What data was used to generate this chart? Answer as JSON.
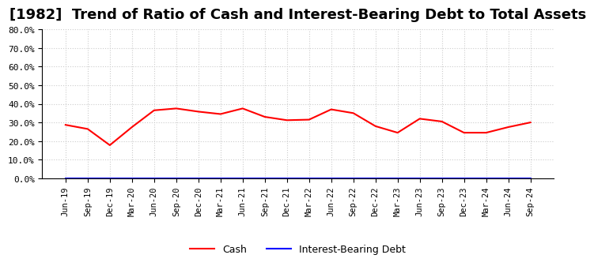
{
  "title": "[1982]  Trend of Ratio of Cash and Interest-Bearing Debt to Total Assets",
  "x_labels": [
    "Jun-19",
    "Sep-19",
    "Dec-19",
    "Mar-20",
    "Jun-20",
    "Sep-20",
    "Dec-20",
    "Mar-21",
    "Jun-21",
    "Sep-21",
    "Dec-21",
    "Mar-22",
    "Jun-22",
    "Sep-22",
    "Dec-22",
    "Mar-23",
    "Jun-23",
    "Sep-23",
    "Dec-23",
    "Mar-24",
    "Jun-24",
    "Sep-24"
  ],
  "cash_values": [
    0.287,
    0.265,
    0.178,
    0.275,
    0.365,
    0.375,
    0.358,
    0.345,
    0.375,
    0.33,
    0.312,
    0.315,
    0.37,
    0.35,
    0.28,
    0.245,
    0.32,
    0.305,
    0.245,
    0.245,
    0.275,
    0.3
  ],
  "debt_values": [
    0.0,
    0.0,
    0.0,
    0.0,
    0.0,
    0.0,
    0.0,
    0.0,
    0.0,
    0.0,
    0.0,
    0.0,
    0.0,
    0.0,
    0.0,
    0.0,
    0.0,
    0.0,
    0.0,
    0.0,
    0.0,
    0.0
  ],
  "cash_color": "#FF0000",
  "debt_color": "#0000FF",
  "ylim": [
    0.0,
    0.8
  ],
  "yticks": [
    0.0,
    0.1,
    0.2,
    0.3,
    0.4,
    0.5,
    0.6,
    0.7,
    0.8
  ],
  "bg_color": "#FFFFFF",
  "plot_bg_color": "#FFFFFF",
  "grid_color": "#CCCCCC",
  "title_fontsize": 13,
  "legend_labels": [
    "Cash",
    "Interest-Bearing Debt"
  ]
}
